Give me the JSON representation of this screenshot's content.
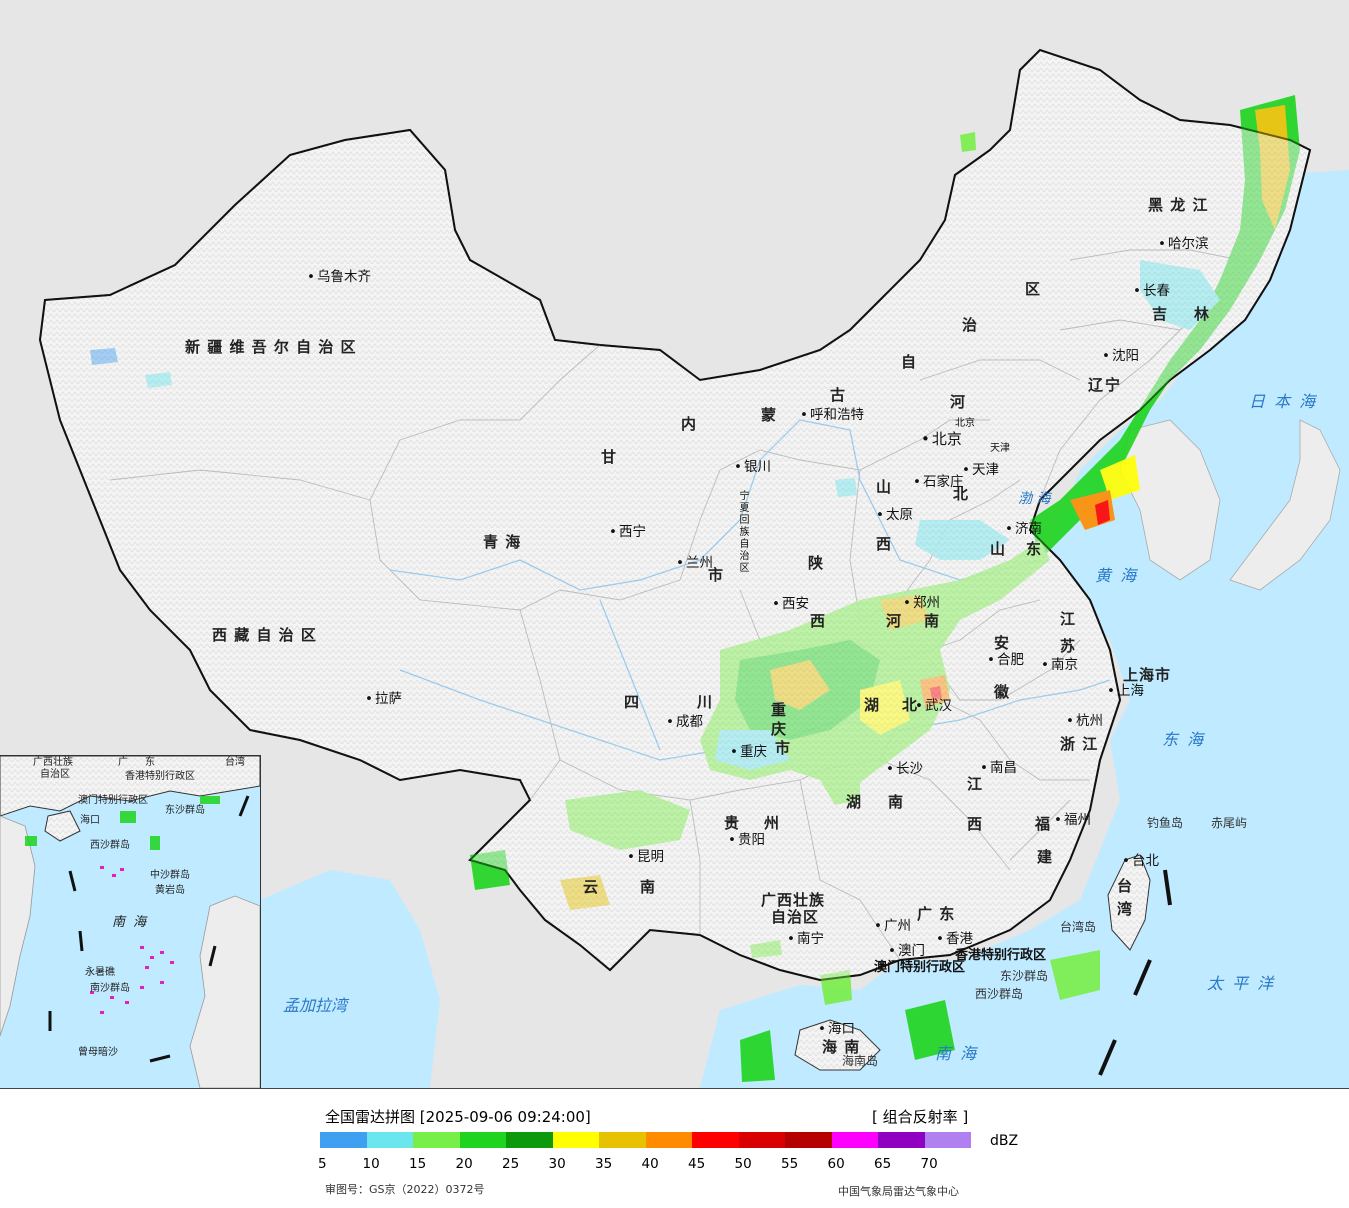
{
  "legend": {
    "title": "全国雷达拼图 [2025-09-06 09:24:00]",
    "product": "[ 组合反射率 ]",
    "unit": "dBZ",
    "colors": [
      "#3f9ff0",
      "#6be5ee",
      "#78ee48",
      "#1ed41e",
      "#0c9a0c",
      "#ffff00",
      "#e6c200",
      "#ff8c00",
      "#ff0000",
      "#d80000",
      "#b40000",
      "#ff00ff",
      "#9000c0",
      "#b080f0"
    ],
    "ticks": [
      "5",
      "10",
      "15",
      "20",
      "25",
      "30",
      "35",
      "40",
      "45",
      "50",
      "55",
      "60",
      "65",
      "70"
    ],
    "approval": "审图号：GS京（2022）0372号",
    "credit": "中国气象局雷达气象中心"
  },
  "colors": {
    "land": "#f2f2f2",
    "outside_land": "#e6e6e6",
    "ocean": "#bfeaff",
    "border": "#111111",
    "province_border": "#888888",
    "river": "#4aa8e8"
  },
  "map": {
    "provinces": [
      {
        "name": "新 疆 维 吾 尔 自 治 区"
      },
      {
        "name": "西 藏 自 治 区"
      },
      {
        "name": "青    海"
      },
      {
        "name": "甘"
      },
      {
        "name": "内"
      },
      {
        "name": "蒙"
      },
      {
        "name": "古"
      },
      {
        "name": "自"
      },
      {
        "name": "治"
      },
      {
        "name": "区"
      },
      {
        "name": "黑 龙 江"
      },
      {
        "name": "吉"
      },
      {
        "name": "林"
      },
      {
        "name": "辽"
      },
      {
        "name": "宁"
      },
      {
        "name": "河"
      },
      {
        "name": "北"
      },
      {
        "name": "山"
      },
      {
        "name": "西"
      },
      {
        "name": "山"
      },
      {
        "name": "东"
      },
      {
        "name": "陕"
      },
      {
        "name": "西"
      },
      {
        "name": "河"
      },
      {
        "name": "南"
      },
      {
        "name": "江"
      },
      {
        "name": "苏"
      },
      {
        "name": "安"
      },
      {
        "name": "徽"
      },
      {
        "name": "浙 江"
      },
      {
        "name": "上海市"
      },
      {
        "name": "四"
      },
      {
        "name": "川"
      },
      {
        "name": "重"
      },
      {
        "name": "庆"
      },
      {
        "name": "市"
      },
      {
        "name": "湖"
      },
      {
        "name": "北"
      },
      {
        "name": "湖"
      },
      {
        "name": "南"
      },
      {
        "name": "江"
      },
      {
        "name": "西"
      },
      {
        "name": "福"
      },
      {
        "name": "建"
      },
      {
        "name": "贵"
      },
      {
        "name": "州"
      },
      {
        "name": "云"
      },
      {
        "name": "南"
      },
      {
        "name": "广西壮族"
      },
      {
        "name": "自治区"
      },
      {
        "name": "广    东"
      },
      {
        "name": "海    南"
      },
      {
        "name": "台"
      },
      {
        "name": "湾"
      },
      {
        "name": "宁夏回族自治区"
      },
      {
        "name": "北京"
      },
      {
        "name": "天津"
      },
      {
        "name": "市"
      },
      {
        "name": "香港特别行政区"
      },
      {
        "name": "澳门特别行政区"
      }
    ],
    "cities": [
      {
        "name": "乌鲁木齐"
      },
      {
        "name": "拉萨"
      },
      {
        "name": "西宁"
      },
      {
        "name": "兰州"
      },
      {
        "name": "银川"
      },
      {
        "name": "呼和浩特"
      },
      {
        "name": "北京"
      },
      {
        "name": "天津"
      },
      {
        "name": "石家庄"
      },
      {
        "name": "太原"
      },
      {
        "name": "济南"
      },
      {
        "name": "郑州"
      },
      {
        "name": "西安"
      },
      {
        "name": "沈阳"
      },
      {
        "name": "长春"
      },
      {
        "name": "哈尔滨"
      },
      {
        "name": "南京"
      },
      {
        "name": "合肥"
      },
      {
        "name": "上海"
      },
      {
        "name": "杭州"
      },
      {
        "name": "成都"
      },
      {
        "name": "重庆"
      },
      {
        "name": "武汉"
      },
      {
        "name": "长沙"
      },
      {
        "name": "南昌"
      },
      {
        "name": "福州"
      },
      {
        "name": "台北"
      },
      {
        "name": "贵阳"
      },
      {
        "name": "昆明"
      },
      {
        "name": "南宁"
      },
      {
        "name": "广州"
      },
      {
        "name": "澳门"
      },
      {
        "name": "香港"
      },
      {
        "name": "海口"
      }
    ],
    "seas": [
      {
        "name": "黄 海"
      },
      {
        "name": "东 海"
      },
      {
        "name": "太 平 洋"
      },
      {
        "name": "日 本 海"
      },
      {
        "name": "南 海"
      },
      {
        "name": "渤 海"
      },
      {
        "name": "孟加拉湾"
      }
    ],
    "islands": [
      {
        "name": "钓鱼岛"
      },
      {
        "name": "赤尾屿"
      },
      {
        "name": "台湾岛"
      },
      {
        "name": "海南岛"
      },
      {
        "name": "东沙群岛"
      },
      {
        "name": "西沙群岛"
      }
    ]
  },
  "inset": {
    "labels": [
      {
        "name": "广西壮族"
      },
      {
        "name": "自治区"
      },
      {
        "name": "广"
      },
      {
        "name": "东"
      },
      {
        "name": "香港特别行政区"
      },
      {
        "name": "澳门特别行政区"
      },
      {
        "name": "台湾"
      },
      {
        "name": "海口"
      },
      {
        "name": "东沙群岛"
      },
      {
        "name": "西沙群岛"
      },
      {
        "name": "中沙群岛"
      },
      {
        "name": "黄岩岛"
      },
      {
        "name": "永暑礁"
      },
      {
        "name": "南沙群岛"
      },
      {
        "name": "曾母暗沙"
      },
      {
        "name": "南 海"
      }
    ]
  }
}
